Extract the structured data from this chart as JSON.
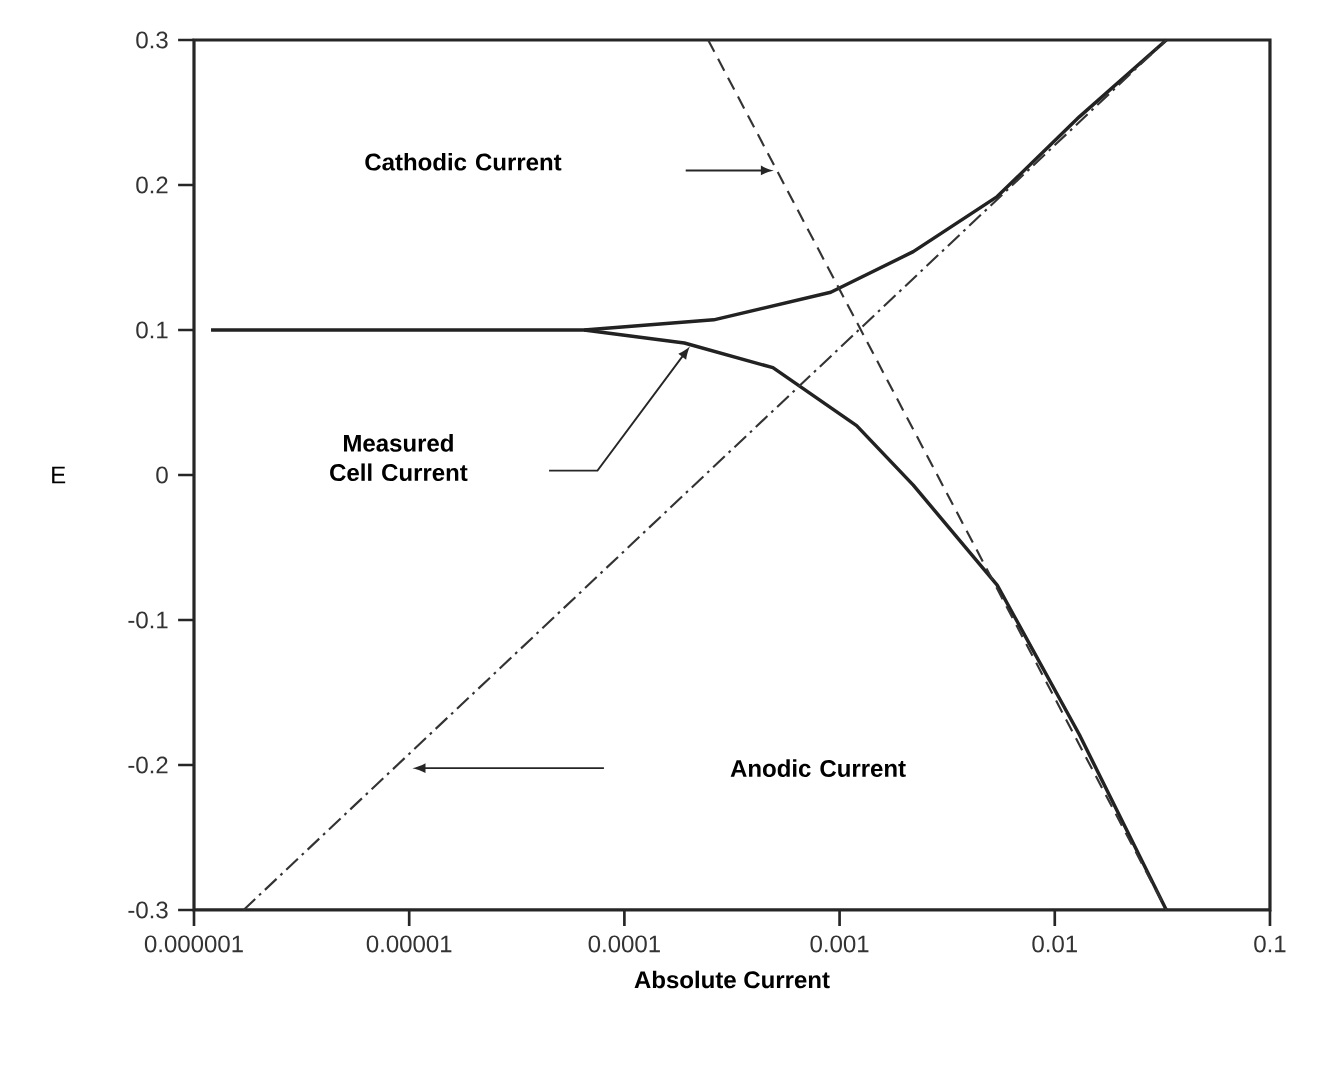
{
  "chart_data": {
    "type": "line",
    "xlabel": "Absolute Current",
    "ylabel": "E",
    "log": "x",
    "xlim": [
      1e-06,
      0.1
    ],
    "ylim": [
      -0.3,
      0.3
    ],
    "xticks": [
      {
        "value": 1e-06,
        "label": "0.000001"
      },
      {
        "value": 1e-05,
        "label": "0.00001"
      },
      {
        "value": 0.0001,
        "label": "0.0001"
      },
      {
        "value": 0.001,
        "label": "0.001"
      },
      {
        "value": 0.01,
        "label": "0.01"
      },
      {
        "value": 0.1,
        "label": "0.1"
      }
    ],
    "yticks": [
      -0.3,
      -0.2,
      -0.1,
      0,
      0.1,
      0.2,
      0.3
    ],
    "series": [
      {
        "color": "#222222",
        "line_style": "solid",
        "x": [
          1.2e-06,
          6.5e-05,
          0.00026,
          0.00091,
          0.0022,
          0.0054,
          0.013,
          0.033
        ],
        "values": [
          0.1,
          0.1,
          0.107,
          0.126,
          0.154,
          0.192,
          0.247,
          0.3
        ]
      },
      {
        "color": "#222222",
        "line_style": "solid",
        "x": [
          6.5e-05,
          0.00019,
          0.00049,
          0.0012,
          0.0022,
          0.0054,
          0.013,
          0.033
        ],
        "values": [
          0.1,
          0.091,
          0.074,
          0.034,
          -0.007,
          -0.076,
          -0.179,
          -0.3
        ]
      },
      {
        "color": "#333333",
        "line_style": "dashed",
        "x": [
          0.000245,
          0.033
        ],
        "values": [
          0.3,
          -0.3
        ]
      },
      {
        "color": "#333333",
        "line_style": "dashdot",
        "x": [
          1.7e-06,
          0.033
        ],
        "values": [
          -0.3,
          0.3
        ]
      }
    ],
    "annotations": [
      "Cathodic Current",
      "Measured Cell Current",
      "Anodic Current"
    ]
  }
}
